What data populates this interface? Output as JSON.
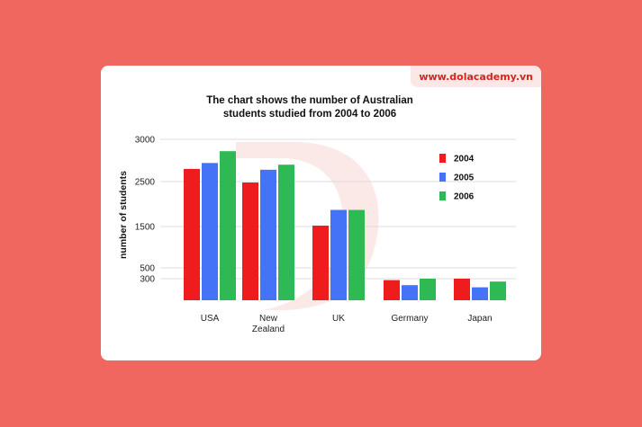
{
  "badge": "www.dolacademy.vn",
  "chart_data": {
    "type": "bar",
    "title_lines": [
      "The chart shows the number of Australian",
      "students studied from 2004 to 2006"
    ],
    "xlabel": "",
    "ylabel": "number of students",
    "y_ticks": [
      300,
      500,
      1500,
      2500,
      3000
    ],
    "categories": [
      [
        "USA"
      ],
      [
        "New",
        "Zealand"
      ],
      [
        "UK"
      ],
      [
        "Germany"
      ],
      [
        "Japan"
      ]
    ],
    "series": [
      {
        "name": "2004",
        "color": "#ee1c1c",
        "values": [
          2650,
          2480,
          1520,
          280,
          300
        ]
      },
      {
        "name": "2005",
        "color": "#4473f7",
        "values": [
          2720,
          2640,
          1870,
          210,
          180
        ]
      },
      {
        "name": "2006",
        "color": "#2fb955",
        "values": [
          2860,
          2700,
          1870,
          300,
          260
        ]
      }
    ],
    "grid": true,
    "legend": "right"
  }
}
